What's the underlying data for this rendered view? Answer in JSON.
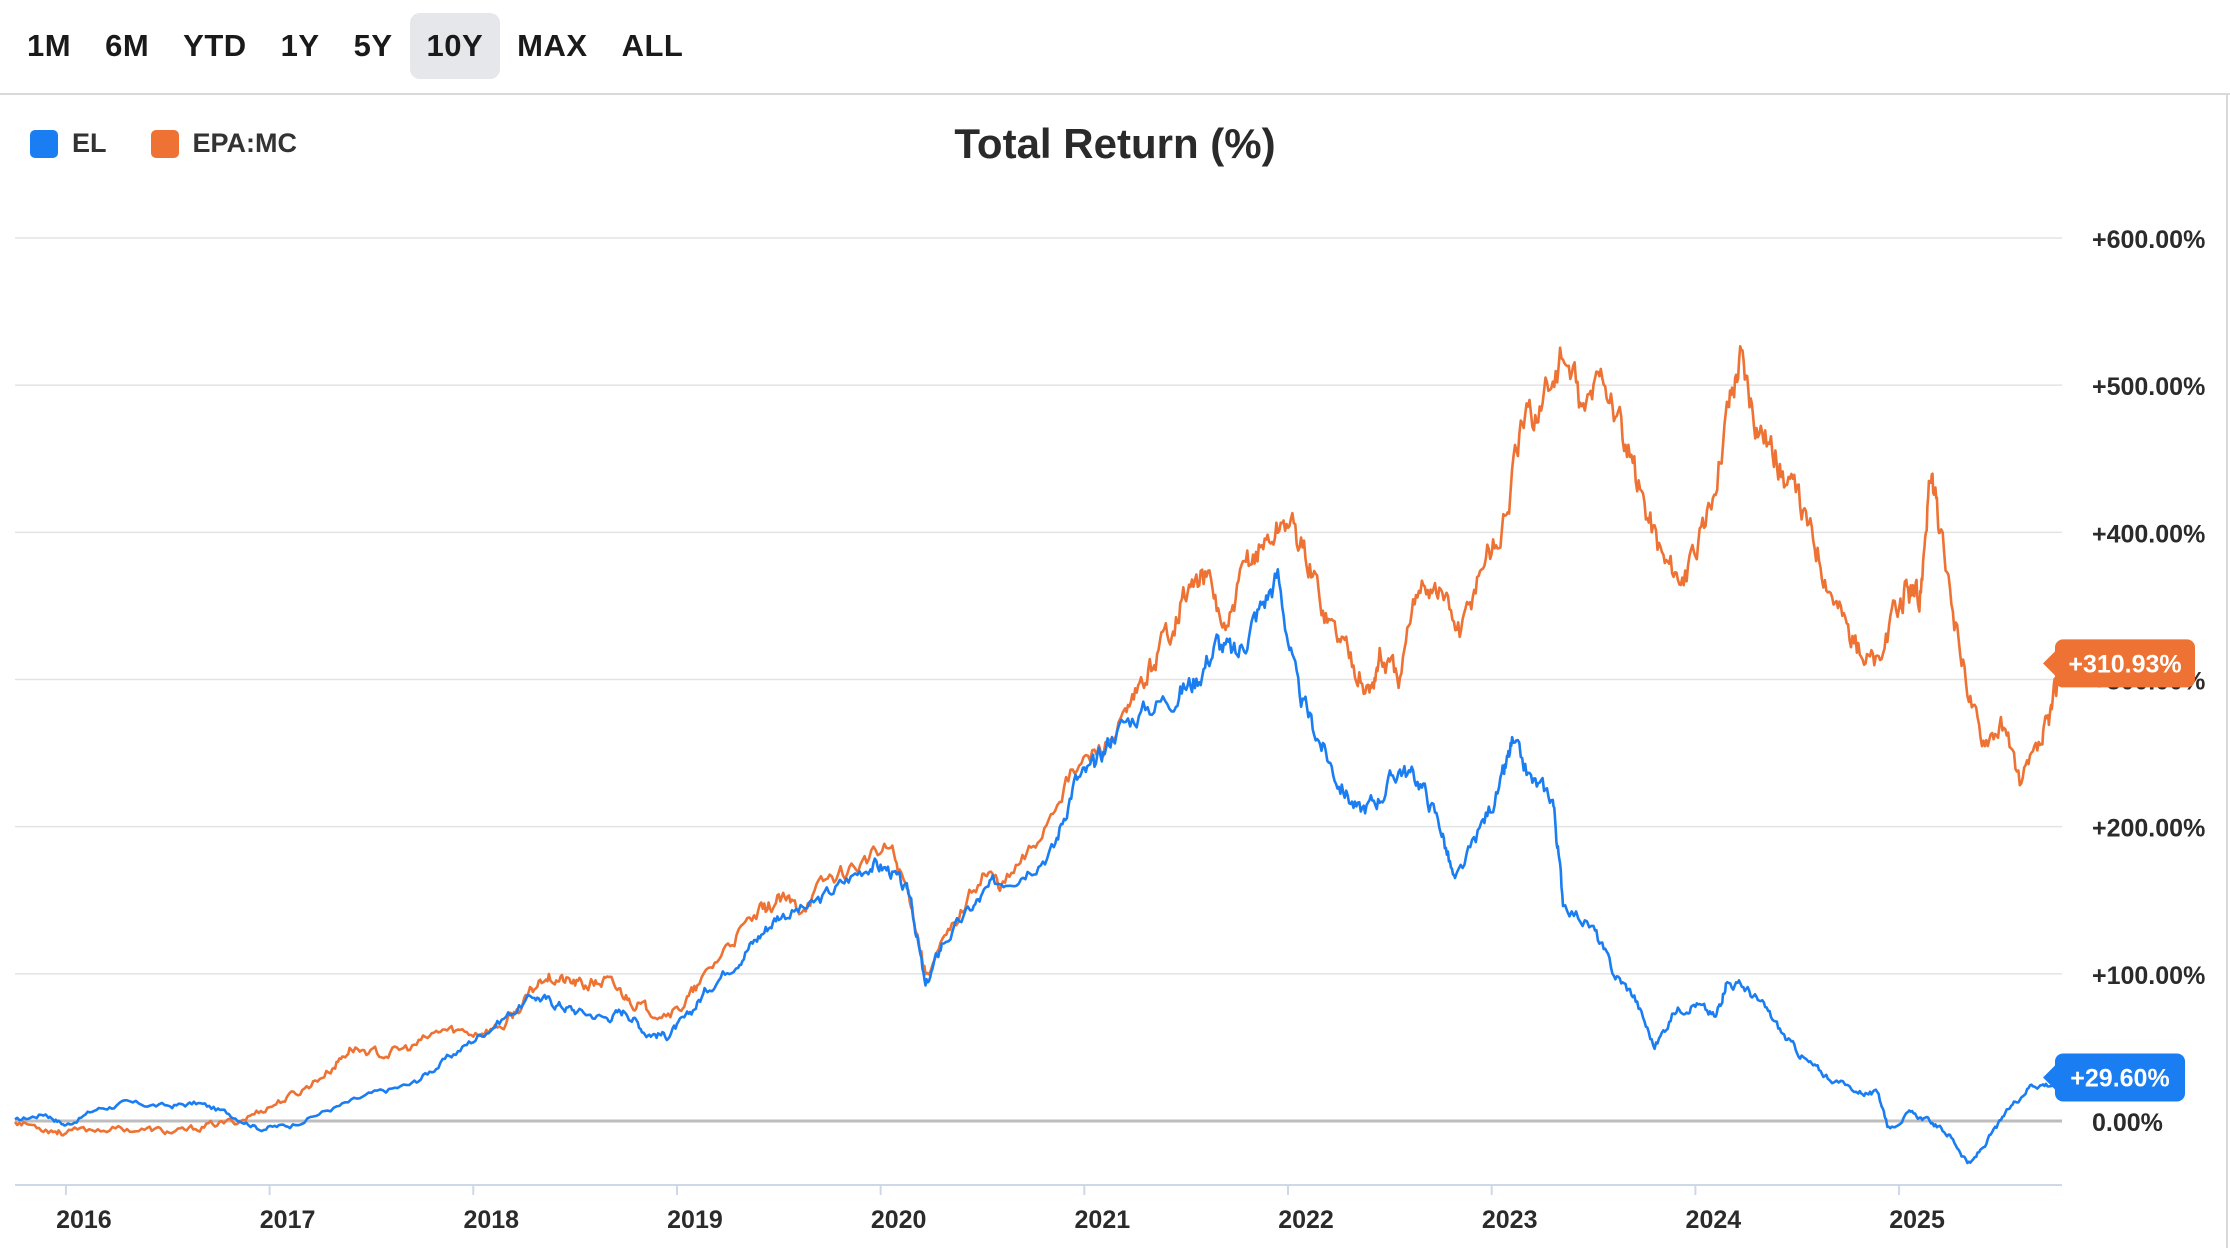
{
  "toolbar": {
    "periods": [
      "1M",
      "6M",
      "YTD",
      "1Y",
      "5Y",
      "10Y",
      "MAX",
      "ALL"
    ],
    "active_period": "10Y"
  },
  "colors": {
    "EL": "#1a7ef2",
    "EPA_MC": "#ee7233",
    "grid": "#e3e3e3",
    "zero": "#bdbdbd"
  },
  "chart_data": {
    "type": "line",
    "title": "Total Return (%)",
    "xlabel": "",
    "ylabel": "",
    "ylim": [
      -45,
      600
    ],
    "y_ticks": [
      0,
      100,
      200,
      300,
      400,
      500,
      600
    ],
    "y_tick_labels": [
      "0.00%",
      "+100.00%",
      "+200.00%",
      "+300.00%",
      "+400.00%",
      "+500.00%",
      "+600.00%"
    ],
    "x_range": [
      2015.75,
      2025.8
    ],
    "x_ticks": [
      2016,
      2017,
      2018,
      2019,
      2020,
      2021,
      2022,
      2023,
      2024,
      2025
    ],
    "x_tick_labels": [
      "2016",
      "2017",
      "2018",
      "2019",
      "2020",
      "2021",
      "2022",
      "2023",
      "2024",
      "2025"
    ],
    "legend_position": "top-left",
    "series": [
      {
        "name": "EL",
        "color_key": "EL",
        "last_label": "+29.60%",
        "points": [
          [
            2015.75,
            0
          ],
          [
            2015.9,
            5
          ],
          [
            2016.0,
            -3
          ],
          [
            2016.15,
            8
          ],
          [
            2016.3,
            12
          ],
          [
            2016.5,
            10
          ],
          [
            2016.65,
            12
          ],
          [
            2016.8,
            5
          ],
          [
            2016.95,
            -5
          ],
          [
            2017.1,
            -3
          ],
          [
            2017.3,
            8
          ],
          [
            2017.5,
            18
          ],
          [
            2017.7,
            25
          ],
          [
            2017.85,
            40
          ],
          [
            2018.0,
            55
          ],
          [
            2018.15,
            70
          ],
          [
            2018.3,
            85
          ],
          [
            2018.4,
            80
          ],
          [
            2018.5,
            75
          ],
          [
            2018.65,
            70
          ],
          [
            2018.75,
            75
          ],
          [
            2018.85,
            60
          ],
          [
            2018.95,
            58
          ],
          [
            2019.05,
            70
          ],
          [
            2019.15,
            90
          ],
          [
            2019.3,
            110
          ],
          [
            2019.4,
            125
          ],
          [
            2019.5,
            140
          ],
          [
            2019.65,
            145
          ],
          [
            2019.8,
            160
          ],
          [
            2019.95,
            175
          ],
          [
            2020.05,
            170
          ],
          [
            2020.15,
            150
          ],
          [
            2020.22,
            90
          ],
          [
            2020.3,
            120
          ],
          [
            2020.45,
            145
          ],
          [
            2020.55,
            160
          ],
          [
            2020.7,
            170
          ],
          [
            2020.85,
            185
          ],
          [
            2020.95,
            230
          ],
          [
            2021.05,
            240
          ],
          [
            2021.15,
            265
          ],
          [
            2021.3,
            280
          ],
          [
            2021.45,
            290
          ],
          [
            2021.55,
            300
          ],
          [
            2021.65,
            325
          ],
          [
            2021.75,
            315
          ],
          [
            2021.85,
            345
          ],
          [
            2021.95,
            370
          ],
          [
            2022.05,
            290
          ],
          [
            2022.15,
            260
          ],
          [
            2022.25,
            230
          ],
          [
            2022.35,
            210
          ],
          [
            2022.45,
            220
          ],
          [
            2022.55,
            240
          ],
          [
            2022.65,
            230
          ],
          [
            2022.75,
            200
          ],
          [
            2022.82,
            160
          ],
          [
            2022.95,
            200
          ],
          [
            2023.05,
            230
          ],
          [
            2023.1,
            255
          ],
          [
            2023.2,
            230
          ],
          [
            2023.3,
            220
          ],
          [
            2023.35,
            150
          ],
          [
            2023.5,
            130
          ],
          [
            2023.6,
            100
          ],
          [
            2023.7,
            85
          ],
          [
            2023.8,
            50
          ],
          [
            2023.9,
            75
          ],
          [
            2024.0,
            80
          ],
          [
            2024.1,
            70
          ],
          [
            2024.15,
            95
          ],
          [
            2024.25,
            90
          ],
          [
            2024.35,
            75
          ],
          [
            2024.45,
            55
          ],
          [
            2024.55,
            40
          ],
          [
            2024.65,
            30
          ],
          [
            2024.8,
            20
          ],
          [
            2024.9,
            18
          ],
          [
            2024.95,
            -5
          ],
          [
            2025.05,
            5
          ],
          [
            2025.15,
            0
          ],
          [
            2025.25,
            -10
          ],
          [
            2025.35,
            -30
          ],
          [
            2025.45,
            -10
          ],
          [
            2025.55,
            10
          ],
          [
            2025.65,
            25
          ],
          [
            2025.75,
            25
          ],
          [
            2025.8,
            29.6
          ]
        ]
      },
      {
        "name": "EPA:MC",
        "color_key": "EPA_MC",
        "last_label": "+310.93%",
        "points": [
          [
            2015.75,
            0
          ],
          [
            2015.9,
            -5
          ],
          [
            2016.0,
            -8
          ],
          [
            2016.2,
            -5
          ],
          [
            2016.4,
            -6
          ],
          [
            2016.55,
            -8
          ],
          [
            2016.7,
            -3
          ],
          [
            2016.85,
            0
          ],
          [
            2017.0,
            10
          ],
          [
            2017.15,
            20
          ],
          [
            2017.3,
            35
          ],
          [
            2017.4,
            50
          ],
          [
            2017.55,
            45
          ],
          [
            2017.7,
            50
          ],
          [
            2017.85,
            62
          ],
          [
            2018.0,
            60
          ],
          [
            2018.15,
            65
          ],
          [
            2018.25,
            80
          ],
          [
            2018.35,
            100
          ],
          [
            2018.45,
            95
          ],
          [
            2018.55,
            92
          ],
          [
            2018.65,
            95
          ],
          [
            2018.75,
            85
          ],
          [
            2018.85,
            75
          ],
          [
            2019.0,
            75
          ],
          [
            2019.1,
            90
          ],
          [
            2019.25,
            120
          ],
          [
            2019.4,
            140
          ],
          [
            2019.5,
            150
          ],
          [
            2019.6,
            145
          ],
          [
            2019.75,
            165
          ],
          [
            2019.9,
            175
          ],
          [
            2020.05,
            185
          ],
          [
            2020.15,
            150
          ],
          [
            2020.22,
            100
          ],
          [
            2020.35,
            130
          ],
          [
            2020.5,
            170
          ],
          [
            2020.6,
            160
          ],
          [
            2020.75,
            185
          ],
          [
            2020.9,
            230
          ],
          [
            2021.05,
            250
          ],
          [
            2021.2,
            270
          ],
          [
            2021.3,
            300
          ],
          [
            2021.4,
            330
          ],
          [
            2021.5,
            360
          ],
          [
            2021.6,
            370
          ],
          [
            2021.7,
            330
          ],
          [
            2021.8,
            380
          ],
          [
            2021.9,
            395
          ],
          [
            2022.0,
            410
          ],
          [
            2022.1,
            380
          ],
          [
            2022.2,
            340
          ],
          [
            2022.3,
            320
          ],
          [
            2022.4,
            290
          ],
          [
            2022.45,
            315
          ],
          [
            2022.55,
            300
          ],
          [
            2022.65,
            370
          ],
          [
            2022.75,
            360
          ],
          [
            2022.85,
            330
          ],
          [
            2022.95,
            380
          ],
          [
            2023.05,
            400
          ],
          [
            2023.15,
            470
          ],
          [
            2023.25,
            490
          ],
          [
            2023.35,
            520
          ],
          [
            2023.45,
            480
          ],
          [
            2023.55,
            510
          ],
          [
            2023.65,
            460
          ],
          [
            2023.75,
            420
          ],
          [
            2023.85,
            380
          ],
          [
            2023.95,
            370
          ],
          [
            2024.05,
            400
          ],
          [
            2024.15,
            480
          ],
          [
            2024.22,
            520
          ],
          [
            2024.3,
            480
          ],
          [
            2024.4,
            450
          ],
          [
            2024.5,
            420
          ],
          [
            2024.6,
            390
          ],
          [
            2024.7,
            350
          ],
          [
            2024.8,
            320
          ],
          [
            2024.9,
            310
          ],
          [
            2025.0,
            350
          ],
          [
            2025.05,
            360
          ],
          [
            2025.1,
            350
          ],
          [
            2025.15,
            440
          ],
          [
            2025.2,
            400
          ],
          [
            2025.3,
            320
          ],
          [
            2025.4,
            260
          ],
          [
            2025.5,
            270
          ],
          [
            2025.6,
            230
          ],
          [
            2025.7,
            255
          ],
          [
            2025.75,
            280
          ],
          [
            2025.8,
            310.93
          ]
        ]
      }
    ]
  }
}
